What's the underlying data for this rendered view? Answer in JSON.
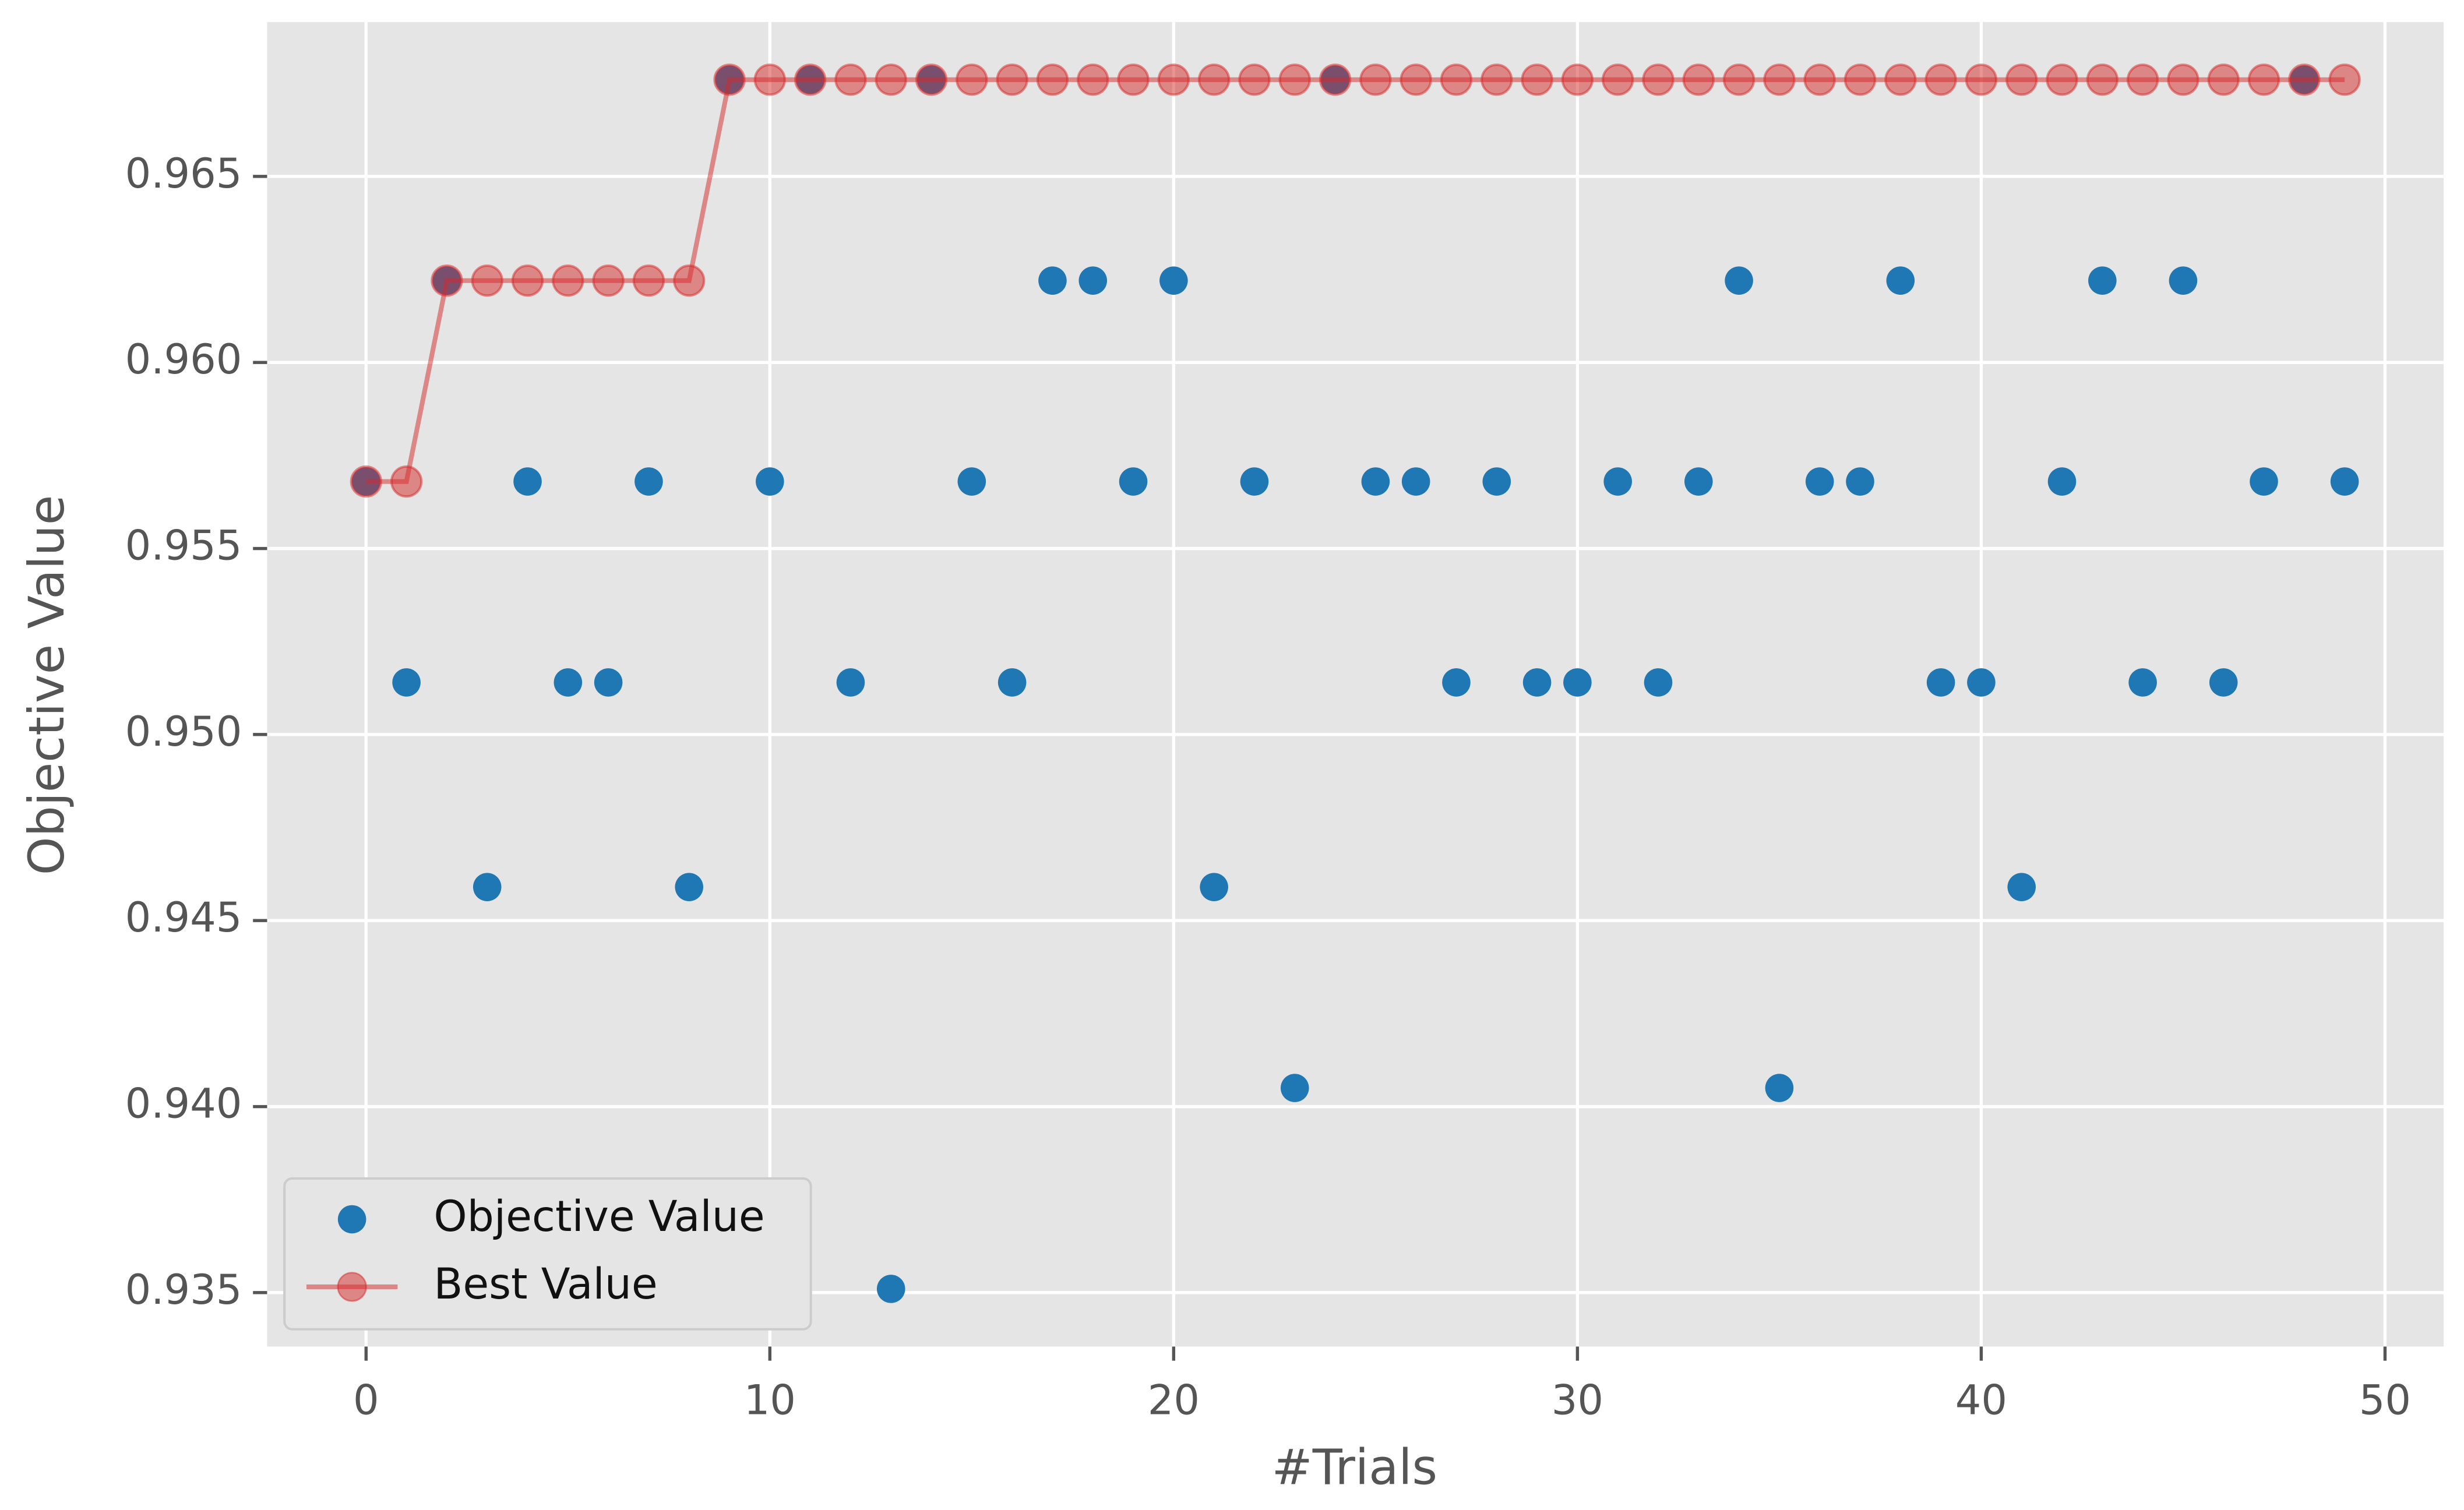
{
  "chart_data": {
    "type": "scatter",
    "xlabel": "#Trials",
    "ylabel": "Objective Value",
    "x": [
      0,
      1,
      2,
      3,
      4,
      5,
      6,
      7,
      8,
      9,
      10,
      11,
      12,
      13,
      14,
      15,
      16,
      17,
      18,
      19,
      20,
      21,
      22,
      23,
      24,
      25,
      26,
      27,
      28,
      29,
      30,
      31,
      32,
      33,
      34,
      35,
      36,
      37,
      38,
      39,
      40,
      41,
      42,
      43,
      44,
      45,
      46,
      47,
      48,
      49
    ],
    "series": [
      {
        "name": "Objective Value",
        "color": "#1f77b4",
        "mode": "markers",
        "values": [
          0.9568,
          0.9514,
          0.9622,
          0.9459,
          0.9568,
          0.9514,
          0.9514,
          0.9568,
          0.9459,
          0.9676,
          0.9568,
          0.9676,
          0.9514,
          0.9351,
          0.9676,
          0.9568,
          0.9514,
          0.9622,
          0.9622,
          0.9568,
          0.9622,
          0.9459,
          0.9568,
          0.9405,
          0.9676,
          0.9568,
          0.9568,
          0.9514,
          0.9568,
          0.9514,
          0.9514,
          0.9568,
          0.9514,
          0.9568,
          0.9622,
          0.9405,
          0.9568,
          0.9568,
          0.9622,
          0.9514,
          0.9514,
          0.9459,
          0.9568,
          0.9622,
          0.9514,
          0.9622,
          0.9514,
          0.9568,
          0.9676,
          0.9568
        ]
      },
      {
        "name": "Best Value",
        "color": "#d62728",
        "alpha": 0.5,
        "mode": "lines+markers",
        "values": [
          0.9568,
          0.9568,
          0.9622,
          0.9622,
          0.9622,
          0.9622,
          0.9622,
          0.9622,
          0.9622,
          0.9676,
          0.9676,
          0.9676,
          0.9676,
          0.9676,
          0.9676,
          0.9676,
          0.9676,
          0.9676,
          0.9676,
          0.9676,
          0.9676,
          0.9676,
          0.9676,
          0.9676,
          0.9676,
          0.9676,
          0.9676,
          0.9676,
          0.9676,
          0.9676,
          0.9676,
          0.9676,
          0.9676,
          0.9676,
          0.9676,
          0.9676,
          0.9676,
          0.9676,
          0.9676,
          0.9676,
          0.9676,
          0.9676,
          0.9676,
          0.9676,
          0.9676,
          0.9676,
          0.9676,
          0.9676,
          0.9676,
          0.9676
        ]
      }
    ],
    "xlim": [
      -2.45,
      51.45
    ],
    "ylim": [
      0.93355,
      0.96915
    ],
    "xticks": [
      0,
      10,
      20,
      30,
      40,
      50
    ],
    "yticks": [
      0.935,
      {
        "value": 0.94,
        "label": "0.940"
      },
      0.945,
      {
        "value": 0.95,
        "label": "0.950"
      },
      0.955,
      {
        "value": 0.96,
        "label": "0.960"
      },
      0.965
    ],
    "grid": true,
    "background": "#e5e5e5",
    "legend": "lower left"
  }
}
